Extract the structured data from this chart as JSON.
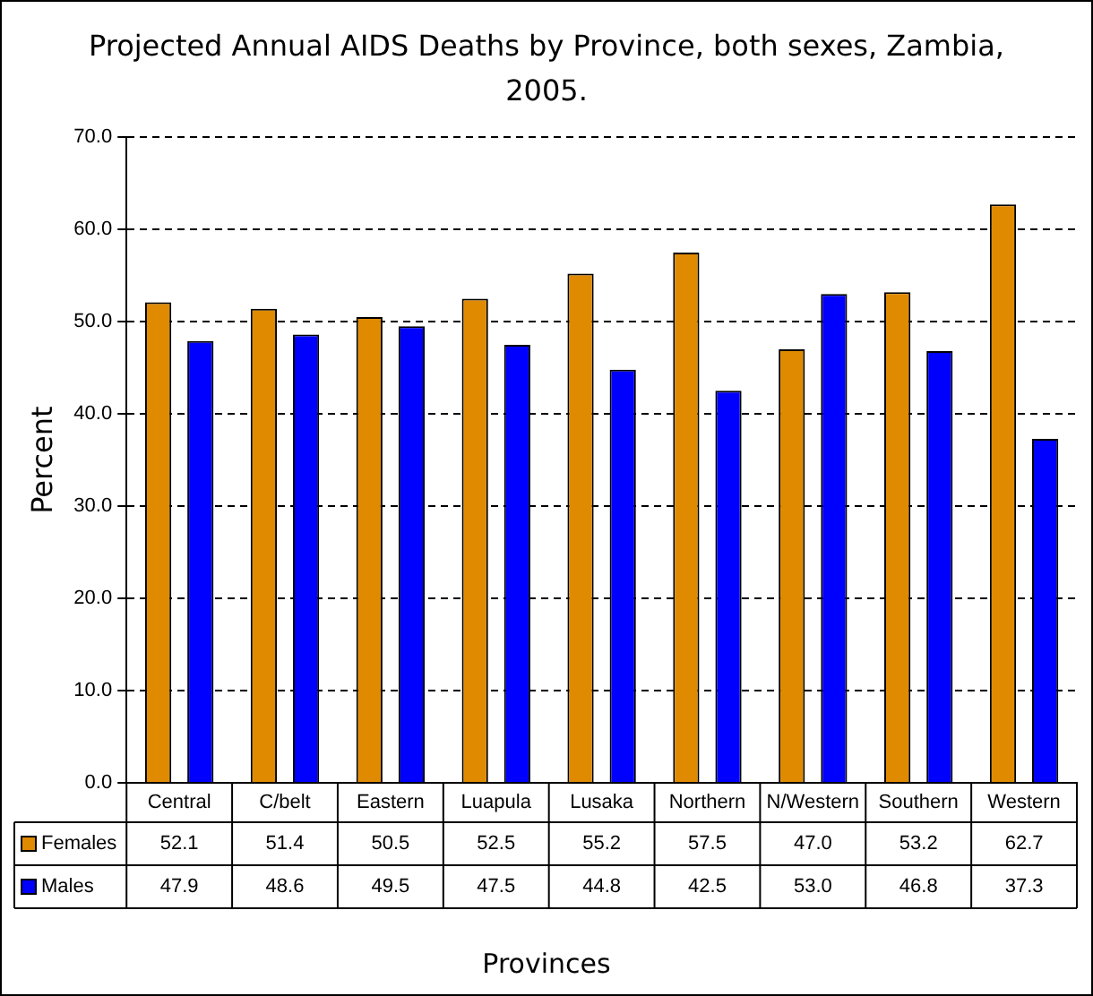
{
  "chart_data": {
    "type": "bar",
    "title": "Projected Annual AIDS Deaths by Province, both sexes, Zambia, 2005.",
    "xlabel": "Provinces",
    "ylabel": "Percent",
    "categories": [
      "Central",
      "C/belt",
      "Eastern",
      "Luapula",
      "Lusaka",
      "Northern",
      "N/Western",
      "Southern",
      "Western"
    ],
    "series": [
      {
        "name": "Females",
        "color": "#e08a00",
        "values": [
          52.1,
          51.4,
          50.5,
          52.5,
          55.2,
          57.5,
          47.0,
          53.2,
          62.7
        ],
        "value_labels": [
          "52.1",
          "51.4",
          "50.5",
          "52.5",
          "55.2",
          "57.5",
          "47.0",
          "53.2",
          "62.7"
        ]
      },
      {
        "name": "Males",
        "color": "#0000ff",
        "values": [
          47.9,
          48.6,
          49.5,
          47.5,
          44.8,
          42.5,
          53.0,
          46.8,
          37.3
        ],
        "value_labels": [
          "47.9",
          "48.6",
          "49.5",
          "47.5",
          "44.8",
          "42.5",
          "53.0",
          "46.8",
          "37.3"
        ]
      }
    ],
    "ylim": [
      0,
      70
    ],
    "yticks": [
      {
        "value": 0,
        "label": "0.0"
      },
      {
        "value": 10,
        "label": "10.0"
      },
      {
        "value": 20,
        "label": "20.0"
      },
      {
        "value": 30,
        "label": "30.0"
      },
      {
        "value": 40,
        "label": "40.0"
      },
      {
        "value": 50,
        "label": "50.0"
      },
      {
        "value": 60,
        "label": "60.0"
      },
      {
        "value": 70,
        "label": "70.0"
      }
    ],
    "grid": "y",
    "line_style": "dashed",
    "legend": "bottom"
  }
}
